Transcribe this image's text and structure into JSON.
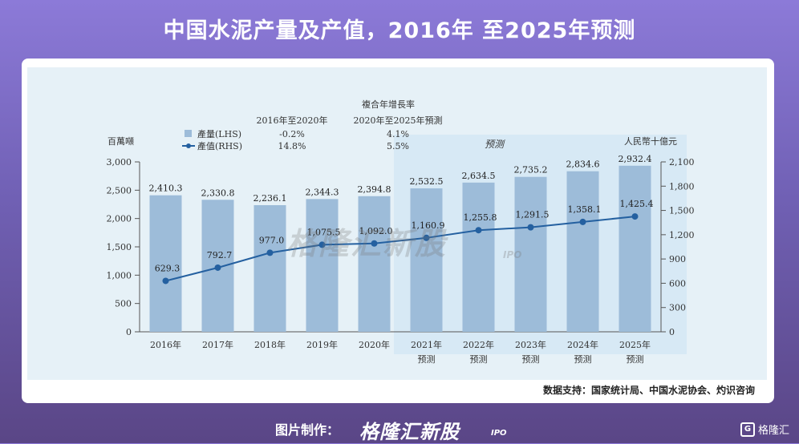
{
  "header": {
    "title": "中国水泥产量及产值，2016年 至2025年预测"
  },
  "chart_data": {
    "type": "bar+line",
    "categories": [
      "2016年",
      "2017年",
      "2018年",
      "2019年",
      "2020年",
      "2021年",
      "2022年",
      "2023年",
      "2024年",
      "2025年"
    ],
    "forecast_label": "预测",
    "forecast_region_label": "预测",
    "forecast_start_index": 5,
    "bars": {
      "name": "產量(LHS)",
      "color": "#9dbcd9",
      "values": [
        2410.3,
        2330.8,
        2236.1,
        2344.3,
        2394.8,
        2532.5,
        2634.5,
        2735.2,
        2834.6,
        2932.4
      ],
      "labels": [
        "2,410.3",
        "2,330.8",
        "2,236.1",
        "2,344.3",
        "2,394.8",
        "2,532.5",
        "2,634.5",
        "2,735.2",
        "2,834.6",
        "2,932.4"
      ]
    },
    "line": {
      "name": "產值(RHS)",
      "color": "#2460a0",
      "values": [
        629.3,
        792.7,
        977.0,
        1075.5,
        1092.0,
        1160.9,
        1255.8,
        1291.5,
        1358.1,
        1425.4
      ],
      "labels": [
        "629.3",
        "792.7",
        "977.0",
        "1,075.5",
        "1,092.0",
        "1,160.9",
        "1,255.8",
        "1,291.5",
        "1,358.1",
        "1,425.4"
      ]
    },
    "left_axis": {
      "label": "百萬噸",
      "ylim": [
        0,
        3000
      ],
      "ticks": [
        "0",
        "500",
        "1,000",
        "1,500",
        "2,000",
        "2,500",
        "3,000"
      ]
    },
    "right_axis": {
      "label": "人民幣十億元",
      "ylim": [
        0,
        2100
      ],
      "ticks": [
        "0",
        "300",
        "600",
        "900",
        "1,200",
        "1,500",
        "1,800",
        "2,100"
      ]
    },
    "cagr": {
      "title": "複合年增長率",
      "col1": "2016年至2020年",
      "col2": "2020年至2025年預測",
      "rows": [
        {
          "name": "產量(LHS)",
          "v1": "-0.2%",
          "v2": "4.1%"
        },
        {
          "name": "產值(RHS)",
          "v1": "14.8%",
          "v2": "5.5%"
        }
      ]
    }
  },
  "watermark": {
    "text": "格隆汇新股",
    "sub": "IPO"
  },
  "source": "数据支持：国家统计局、中国水泥协会、灼识咨询",
  "footer": {
    "credit": "图片制作：",
    "brand": "格隆汇新股",
    "brand_sub": "IPO",
    "logo_text": "格隆汇",
    "logo_mark": "G"
  }
}
